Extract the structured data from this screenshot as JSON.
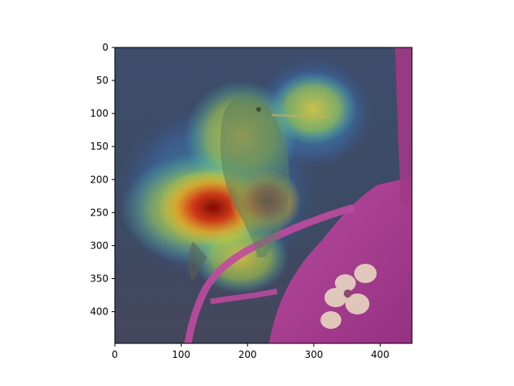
{
  "figure": {
    "image_description_free": true,
    "x_axis": {
      "ticks": [
        0,
        100,
        200,
        300,
        400
      ],
      "range": [
        0,
        448
      ]
    },
    "y_axis": {
      "ticks": [
        0,
        50,
        100,
        150,
        200,
        250,
        300,
        350,
        400
      ],
      "range": [
        0,
        448
      ],
      "inverted": true
    },
    "colormap": "jet",
    "overlay_alpha": 0.5
  }
}
